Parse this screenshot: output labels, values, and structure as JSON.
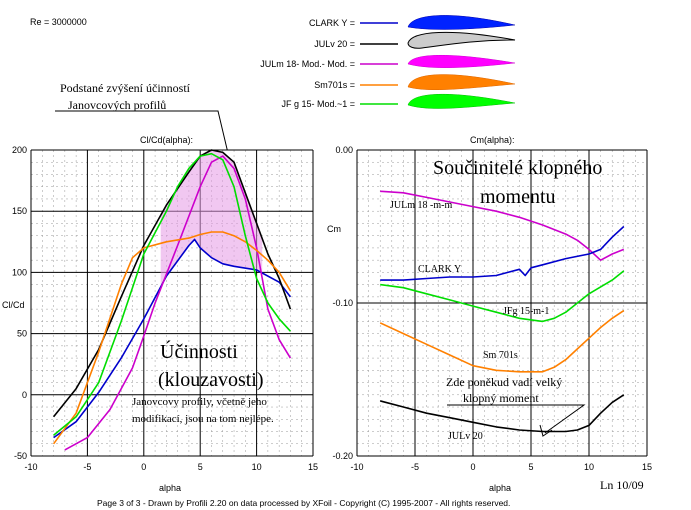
{
  "header": {
    "reynolds": "Re = 3000000",
    "legend": [
      {
        "label": "CLARK Y =",
        "color": "#0000cc",
        "fill": "#0022ff"
      },
      {
        "label": "JULv 20 =",
        "color": "#000000",
        "fill": "#cccccc"
      },
      {
        "label": "JULm 18- Mod.- Mod. =",
        "color": "#cc00cc",
        "fill": "#ff00ff"
      },
      {
        "label": "Sm701s =",
        "color": "#ff8000",
        "fill": "#ff8000"
      },
      {
        "label": "JF g  15- Mod.~1 =",
        "color": "#00dd00",
        "fill": "#00ff00"
      }
    ],
    "annotation_increase": [
      "Podstané zvýšení účinností",
      "Janovcových profilů"
    ]
  },
  "footer": {
    "credit": "Page 3 of 3   -   Drawn by Profili 2.20 on data processed by  XFoil - Copyright (C) 1995-2007 - All rights reserved.",
    "ln": "Ln 10/09"
  },
  "chart_data": [
    {
      "type": "line",
      "title": "Cl/Cd(alpha):",
      "xlabel": "alpha",
      "ylabel": "Cl/Cd",
      "xlim": [
        -10,
        15
      ],
      "ylim": [
        -50,
        200
      ],
      "xticks": [
        "-10",
        "-5",
        "0",
        "5",
        "10",
        "15"
      ],
      "yticks": [
        "200",
        "150",
        "100",
        "50",
        "0",
        "-50"
      ],
      "grid": true,
      "overlay_text": [
        "Účinnosti",
        "(klouzavosti)"
      ],
      "overlay_note": [
        "Janovcovy profily, včetně jeho",
        "modifikací, jsou na tom nejlépe."
      ],
      "series": [
        {
          "name": "CLARK Y",
          "color": "#0000cc",
          "x": [
            -8,
            -6,
            -4,
            -2,
            0,
            2,
            4,
            4.5,
            5,
            6,
            7,
            8,
            10,
            12,
            13
          ],
          "y": [
            -35,
            -22,
            2,
            30,
            62,
            97,
            122,
            127,
            120,
            112,
            107,
            105,
            102,
            92,
            80
          ]
        },
        {
          "name": "JULv 20",
          "color": "#000000",
          "x": [
            -8,
            -6,
            -4,
            -2,
            0,
            2,
            4,
            5,
            6,
            7,
            8,
            9,
            10,
            11,
            12,
            13
          ],
          "y": [
            -18,
            5,
            37,
            80,
            122,
            155,
            182,
            195,
            200,
            198,
            190,
            165,
            140,
            115,
            95,
            70
          ]
        },
        {
          "name": "JULm 18- Mod.- Mod.",
          "color": "#cc00cc",
          "x": [
            -7,
            -5,
            -3,
            -1,
            0,
            1,
            3,
            5,
            6,
            7,
            8,
            9,
            10,
            11,
            12,
            13
          ],
          "y": [
            -45,
            -35,
            -12,
            22,
            48,
            75,
            122,
            170,
            190,
            195,
            185,
            160,
            120,
            70,
            45,
            30
          ]
        },
        {
          "name": "Sm701s",
          "color": "#ff8000",
          "x": [
            -8,
            -6,
            -4,
            -2,
            -1,
            0,
            2,
            4,
            5,
            6,
            7,
            8,
            9,
            10,
            11,
            12,
            13
          ],
          "y": [
            -40,
            -15,
            35,
            90,
            112,
            120,
            125,
            128,
            131,
            133,
            133,
            130,
            125,
            118,
            110,
            100,
            85
          ]
        },
        {
          "name": "JF g  15- Mod.~1",
          "color": "#00dd00",
          "x": [
            -8,
            -6,
            -4,
            -2,
            0,
            2,
            3,
            4,
            5,
            6,
            7,
            8,
            9,
            10,
            11,
            12,
            13
          ],
          "y": [
            -33,
            -18,
            10,
            60,
            115,
            150,
            170,
            185,
            195,
            197,
            192,
            170,
            130,
            95,
            75,
            62,
            52
          ]
        }
      ]
    },
    {
      "type": "line",
      "title": "Cm(alpha):",
      "xlabel": "alpha",
      "ylabel": "Cm",
      "xlim": [
        -10,
        15
      ],
      "ylim": [
        -0.2,
        0.0
      ],
      "xticks": [
        "-10",
        "-5",
        "0",
        "5",
        "10",
        "15"
      ],
      "yticks": [
        "0.00",
        "-0.10",
        "-0.20"
      ],
      "grid": true,
      "overlay_text": [
        "Součinitelé klopného",
        "momentu"
      ],
      "overlay_note": [
        "Zde poněkud vadí velký",
        "klopný moment"
      ],
      "curve_labels": [
        "JULm 18 -m-m",
        "CLARK Y",
        "JFg 15-m-1",
        "Sm 701s",
        "JULv 20"
      ],
      "series": [
        {
          "name": "JULm 18- Mod.- Mod.",
          "color": "#cc00cc",
          "x": [
            -8,
            -6,
            -4,
            -2,
            0,
            2,
            4,
            6,
            8,
            9,
            10,
            11,
            12,
            13
          ],
          "y": [
            -0.027,
            -0.028,
            -0.031,
            -0.034,
            -0.037,
            -0.04,
            -0.044,
            -0.049,
            -0.055,
            -0.059,
            -0.065,
            -0.072,
            -0.068,
            -0.065
          ]
        },
        {
          "name": "CLARK Y",
          "color": "#0000cc",
          "x": [
            -8,
            -6,
            -4,
            -2,
            0,
            2,
            3,
            4,
            4.5,
            5,
            6,
            8,
            10,
            11,
            12,
            13
          ],
          "y": [
            -0.085,
            -0.085,
            -0.084,
            -0.083,
            -0.083,
            -0.082,
            -0.08,
            -0.078,
            -0.082,
            -0.077,
            -0.075,
            -0.071,
            -0.068,
            -0.065,
            -0.057,
            -0.05
          ]
        },
        {
          "name": "JF g  15- Mod.~1",
          "color": "#00dd00",
          "x": [
            -8,
            -6,
            -4,
            -2,
            0,
            2,
            4,
            6,
            7,
            8,
            9,
            10,
            12,
            13
          ],
          "y": [
            -0.088,
            -0.09,
            -0.094,
            -0.098,
            -0.102,
            -0.106,
            -0.11,
            -0.112,
            -0.11,
            -0.106,
            -0.1,
            -0.094,
            -0.085,
            -0.079
          ]
        },
        {
          "name": "Sm701s",
          "color": "#ff8000",
          "x": [
            -8,
            -6,
            -4,
            -2,
            0,
            2,
            4,
            6,
            7,
            8,
            9,
            10,
            11,
            12,
            13
          ],
          "y": [
            -0.113,
            -0.12,
            -0.127,
            -0.134,
            -0.141,
            -0.144,
            -0.145,
            -0.145,
            -0.142,
            -0.137,
            -0.13,
            -0.123,
            -0.116,
            -0.11,
            -0.105
          ]
        },
        {
          "name": "JULv 20",
          "color": "#000000",
          "x": [
            -8,
            -6,
            -4,
            -2,
            0,
            2,
            4,
            6,
            8,
            9,
            10,
            11,
            12,
            13
          ],
          "y": [
            -0.164,
            -0.168,
            -0.172,
            -0.175,
            -0.178,
            -0.181,
            -0.183,
            -0.184,
            -0.184,
            -0.183,
            -0.18,
            -0.172,
            -0.165,
            -0.16
          ]
        }
      ]
    }
  ]
}
